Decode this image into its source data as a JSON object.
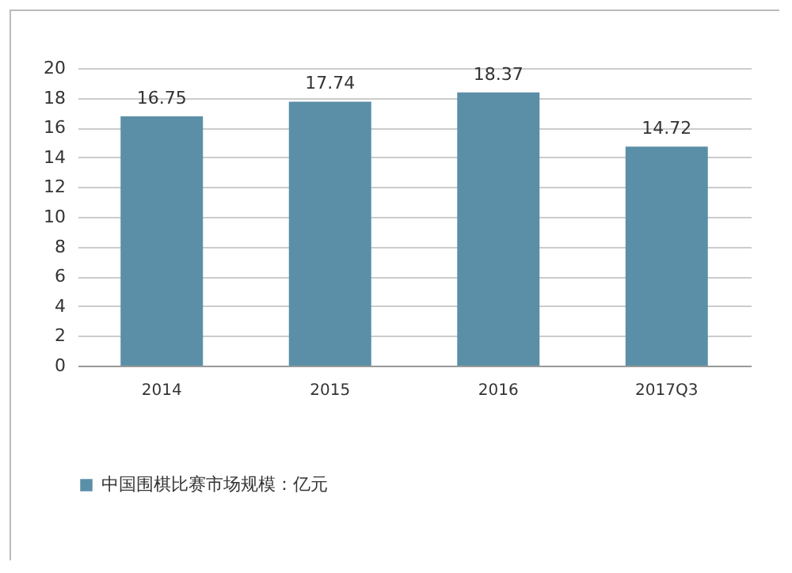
{
  "chart_data": {
    "type": "bar",
    "categories": [
      "2014",
      "2015",
      "2016",
      "2017Q3"
    ],
    "series": [
      {
        "name": "中国围棋比赛市场规模：亿元",
        "color": "#5b8fa8",
        "values": [
          16.75,
          17.74,
          18.37,
          14.72
        ]
      }
    ],
    "ylim": [
      0,
      20
    ],
    "yticks": [
      0,
      2,
      4,
      6,
      8,
      10,
      12,
      14,
      16,
      18,
      20
    ],
    "grid": "y",
    "legend": "bottom",
    "data_labels": true
  }
}
